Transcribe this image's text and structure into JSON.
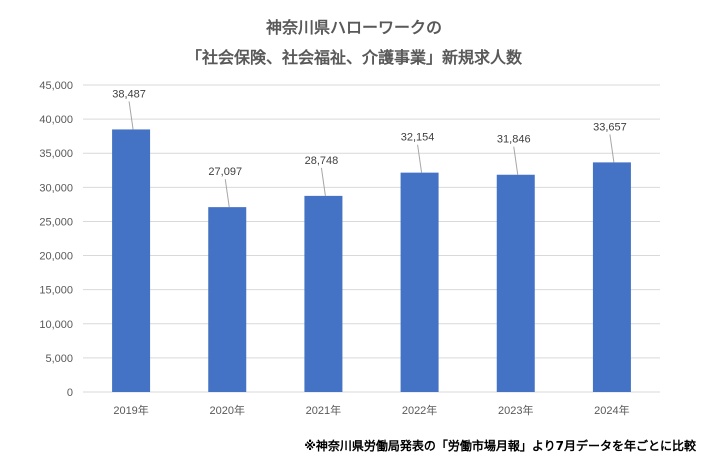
{
  "title_line1": "神奈川県ハローワークの",
  "title_line2": "「社会保険、社会福祉、介護事業」新規求人数",
  "footnote": "※神奈川県労働局発表の「労働市場月報」より7月データを年ごとに比較",
  "colors": {
    "bar": "#4472C4",
    "grid": "#D9D9D9",
    "leader": "#A6A6A6"
  },
  "chart_data": {
    "type": "bar",
    "categories": [
      "2019年",
      "2020年",
      "2021年",
      "2022年",
      "2023年",
      "2024年"
    ],
    "values": [
      38487,
      27097,
      28748,
      32154,
      31846,
      33657
    ],
    "value_labels": [
      "38,487",
      "27,097",
      "28,748",
      "32,154",
      "31,846",
      "33,657"
    ],
    "y_tick_labels": [
      "0",
      "5,000",
      "10,000",
      "15,000",
      "20,000",
      "25,000",
      "30,000",
      "35,000",
      "40,000",
      "45,000"
    ],
    "ylim": [
      0,
      45000
    ],
    "y_step": 5000,
    "grid": true,
    "legend": "none"
  }
}
